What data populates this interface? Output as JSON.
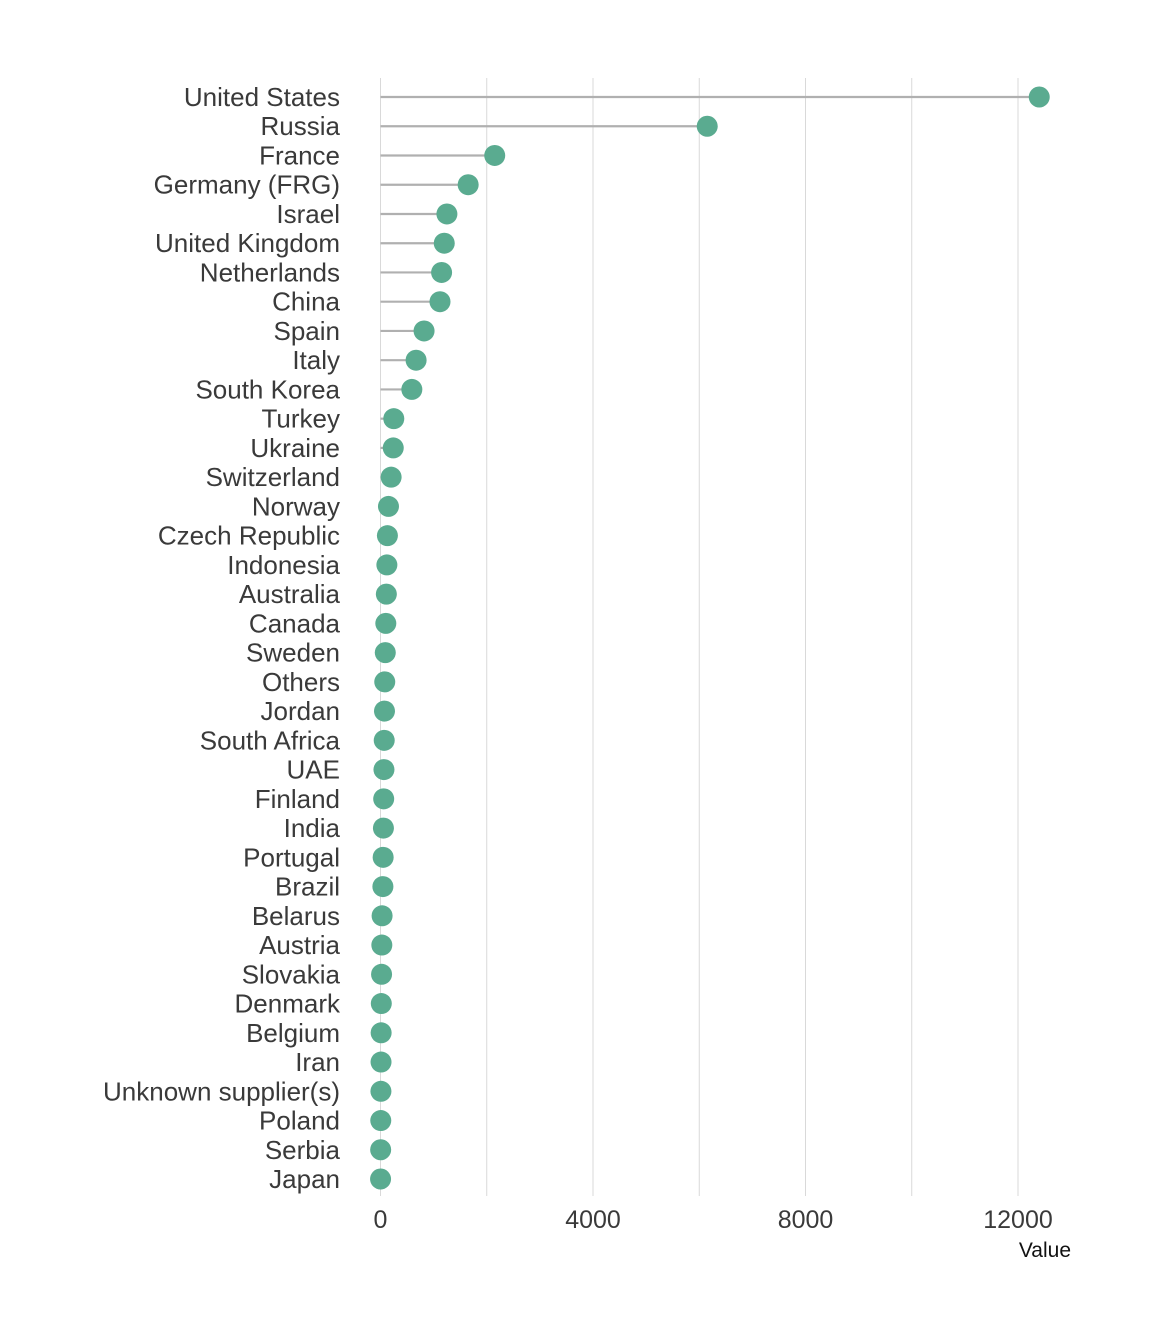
{
  "chart_data": {
    "type": "lollipop",
    "title": "",
    "xlabel": "Value",
    "ylabel": "",
    "xlim": [
      0,
      13000
    ],
    "xticks": [
      0,
      4000,
      8000,
      12000
    ],
    "grid": "vertical",
    "legend": "none",
    "colors": {
      "point": "#5aab90",
      "stem": "#b0b0b0",
      "grid": "#d9d9d9"
    },
    "categories": [
      "United States",
      "Russia",
      "France",
      "Germany (FRG)",
      "Israel",
      "United Kingdom",
      "Netherlands",
      "China",
      "Spain",
      "Italy",
      "South Korea",
      "Turkey",
      "Ukraine",
      "Switzerland",
      "Norway",
      "Czech Republic",
      "Indonesia",
      "Australia",
      "Canada",
      "Sweden",
      "Others",
      "Jordan",
      "South Africa",
      "UAE",
      "Finland",
      "India",
      "Portugal",
      "Brazil",
      "Belarus",
      "Austria",
      "Slovakia",
      "Denmark",
      "Belgium",
      "Iran",
      "Unknown supplier(s)",
      "Poland",
      "Serbia",
      "Japan"
    ],
    "values": [
      12400,
      6150,
      2150,
      1650,
      1250,
      1200,
      1150,
      1120,
      820,
      670,
      590,
      250,
      240,
      200,
      150,
      130,
      120,
      110,
      100,
      90,
      80,
      75,
      70,
      65,
      60,
      55,
      50,
      45,
      30,
      25,
      20,
      15,
      12,
      10,
      8,
      5,
      3,
      1
    ]
  }
}
